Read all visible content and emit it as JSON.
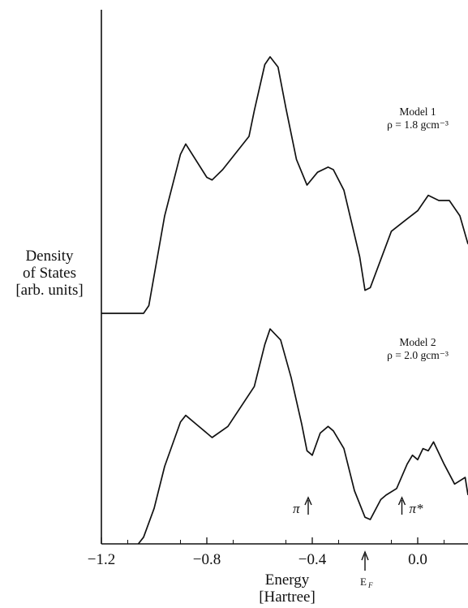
{
  "chart_data": {
    "type": "line",
    "title": "",
    "xlabel": [
      "Energy",
      "[Hartree]"
    ],
    "ylabel": [
      "Density",
      "of States",
      "[arb. units]"
    ],
    "xlim": [
      -1.2,
      0.2
    ],
    "xticks": [
      -1.2,
      -0.8,
      -0.4,
      0.0
    ],
    "xtick_labels": [
      "−1.2",
      "−0.8",
      "−0.4",
      "0.0"
    ],
    "fermi_label": "E",
    "fermi_sub": "F",
    "fermi_energy": -0.2,
    "series": [
      {
        "name": "Model 1",
        "legend_lines": [
          "Model 1",
          "ρ = 1.8 gcm⁻³"
        ],
        "x": [
          -1.2,
          -1.04,
          -1.02,
          -0.96,
          -0.9,
          -0.88,
          -0.8,
          -0.78,
          -0.74,
          -0.64,
          -0.62,
          -0.58,
          -0.56,
          -0.53,
          -0.5,
          -0.46,
          -0.42,
          -0.38,
          -0.34,
          -0.32,
          -0.28,
          -0.22,
          -0.2,
          -0.18,
          -0.1,
          -0.05,
          0.0,
          0.04,
          0.08,
          0.12,
          0.16,
          0.2
        ],
        "y": [
          0.0,
          0.0,
          0.03,
          0.38,
          0.62,
          0.66,
          0.53,
          0.52,
          0.56,
          0.69,
          0.79,
          0.97,
          1.0,
          0.96,
          0.8,
          0.6,
          0.5,
          0.55,
          0.57,
          0.56,
          0.48,
          0.22,
          0.09,
          0.1,
          0.32,
          0.36,
          0.4,
          0.46,
          0.44,
          0.44,
          0.38,
          0.27
        ]
      },
      {
        "name": "Model 2",
        "legend_lines": [
          "Model 2",
          "ρ = 2.0 gcm⁻³"
        ],
        "x": [
          -1.06,
          -1.04,
          -1.0,
          -0.96,
          -0.9,
          -0.88,
          -0.84,
          -0.78,
          -0.72,
          -0.62,
          -0.58,
          -0.56,
          -0.52,
          -0.48,
          -0.44,
          -0.42,
          -0.4,
          -0.37,
          -0.34,
          -0.32,
          -0.28,
          -0.24,
          -0.2,
          -0.18,
          -0.14,
          -0.12,
          -0.08,
          -0.04,
          -0.02,
          0.0,
          0.02,
          0.04,
          0.06,
          0.1,
          0.14,
          0.18,
          0.2
        ],
        "y": [
          0.0,
          0.03,
          0.16,
          0.35,
          0.55,
          0.58,
          0.54,
          0.48,
          0.53,
          0.71,
          0.9,
          0.97,
          0.92,
          0.75,
          0.54,
          0.42,
          0.4,
          0.5,
          0.53,
          0.51,
          0.43,
          0.24,
          0.12,
          0.11,
          0.2,
          0.22,
          0.25,
          0.36,
          0.4,
          0.38,
          0.43,
          0.42,
          0.46,
          0.36,
          0.27,
          0.3,
          0.22
        ]
      }
    ],
    "annotations": [
      {
        "text": "π",
        "arrow": "up",
        "x": -0.4
      },
      {
        "text": "π*",
        "arrow": "up",
        "x": -0.02
      }
    ],
    "grid": false,
    "legend": "text labels beside each curve"
  }
}
